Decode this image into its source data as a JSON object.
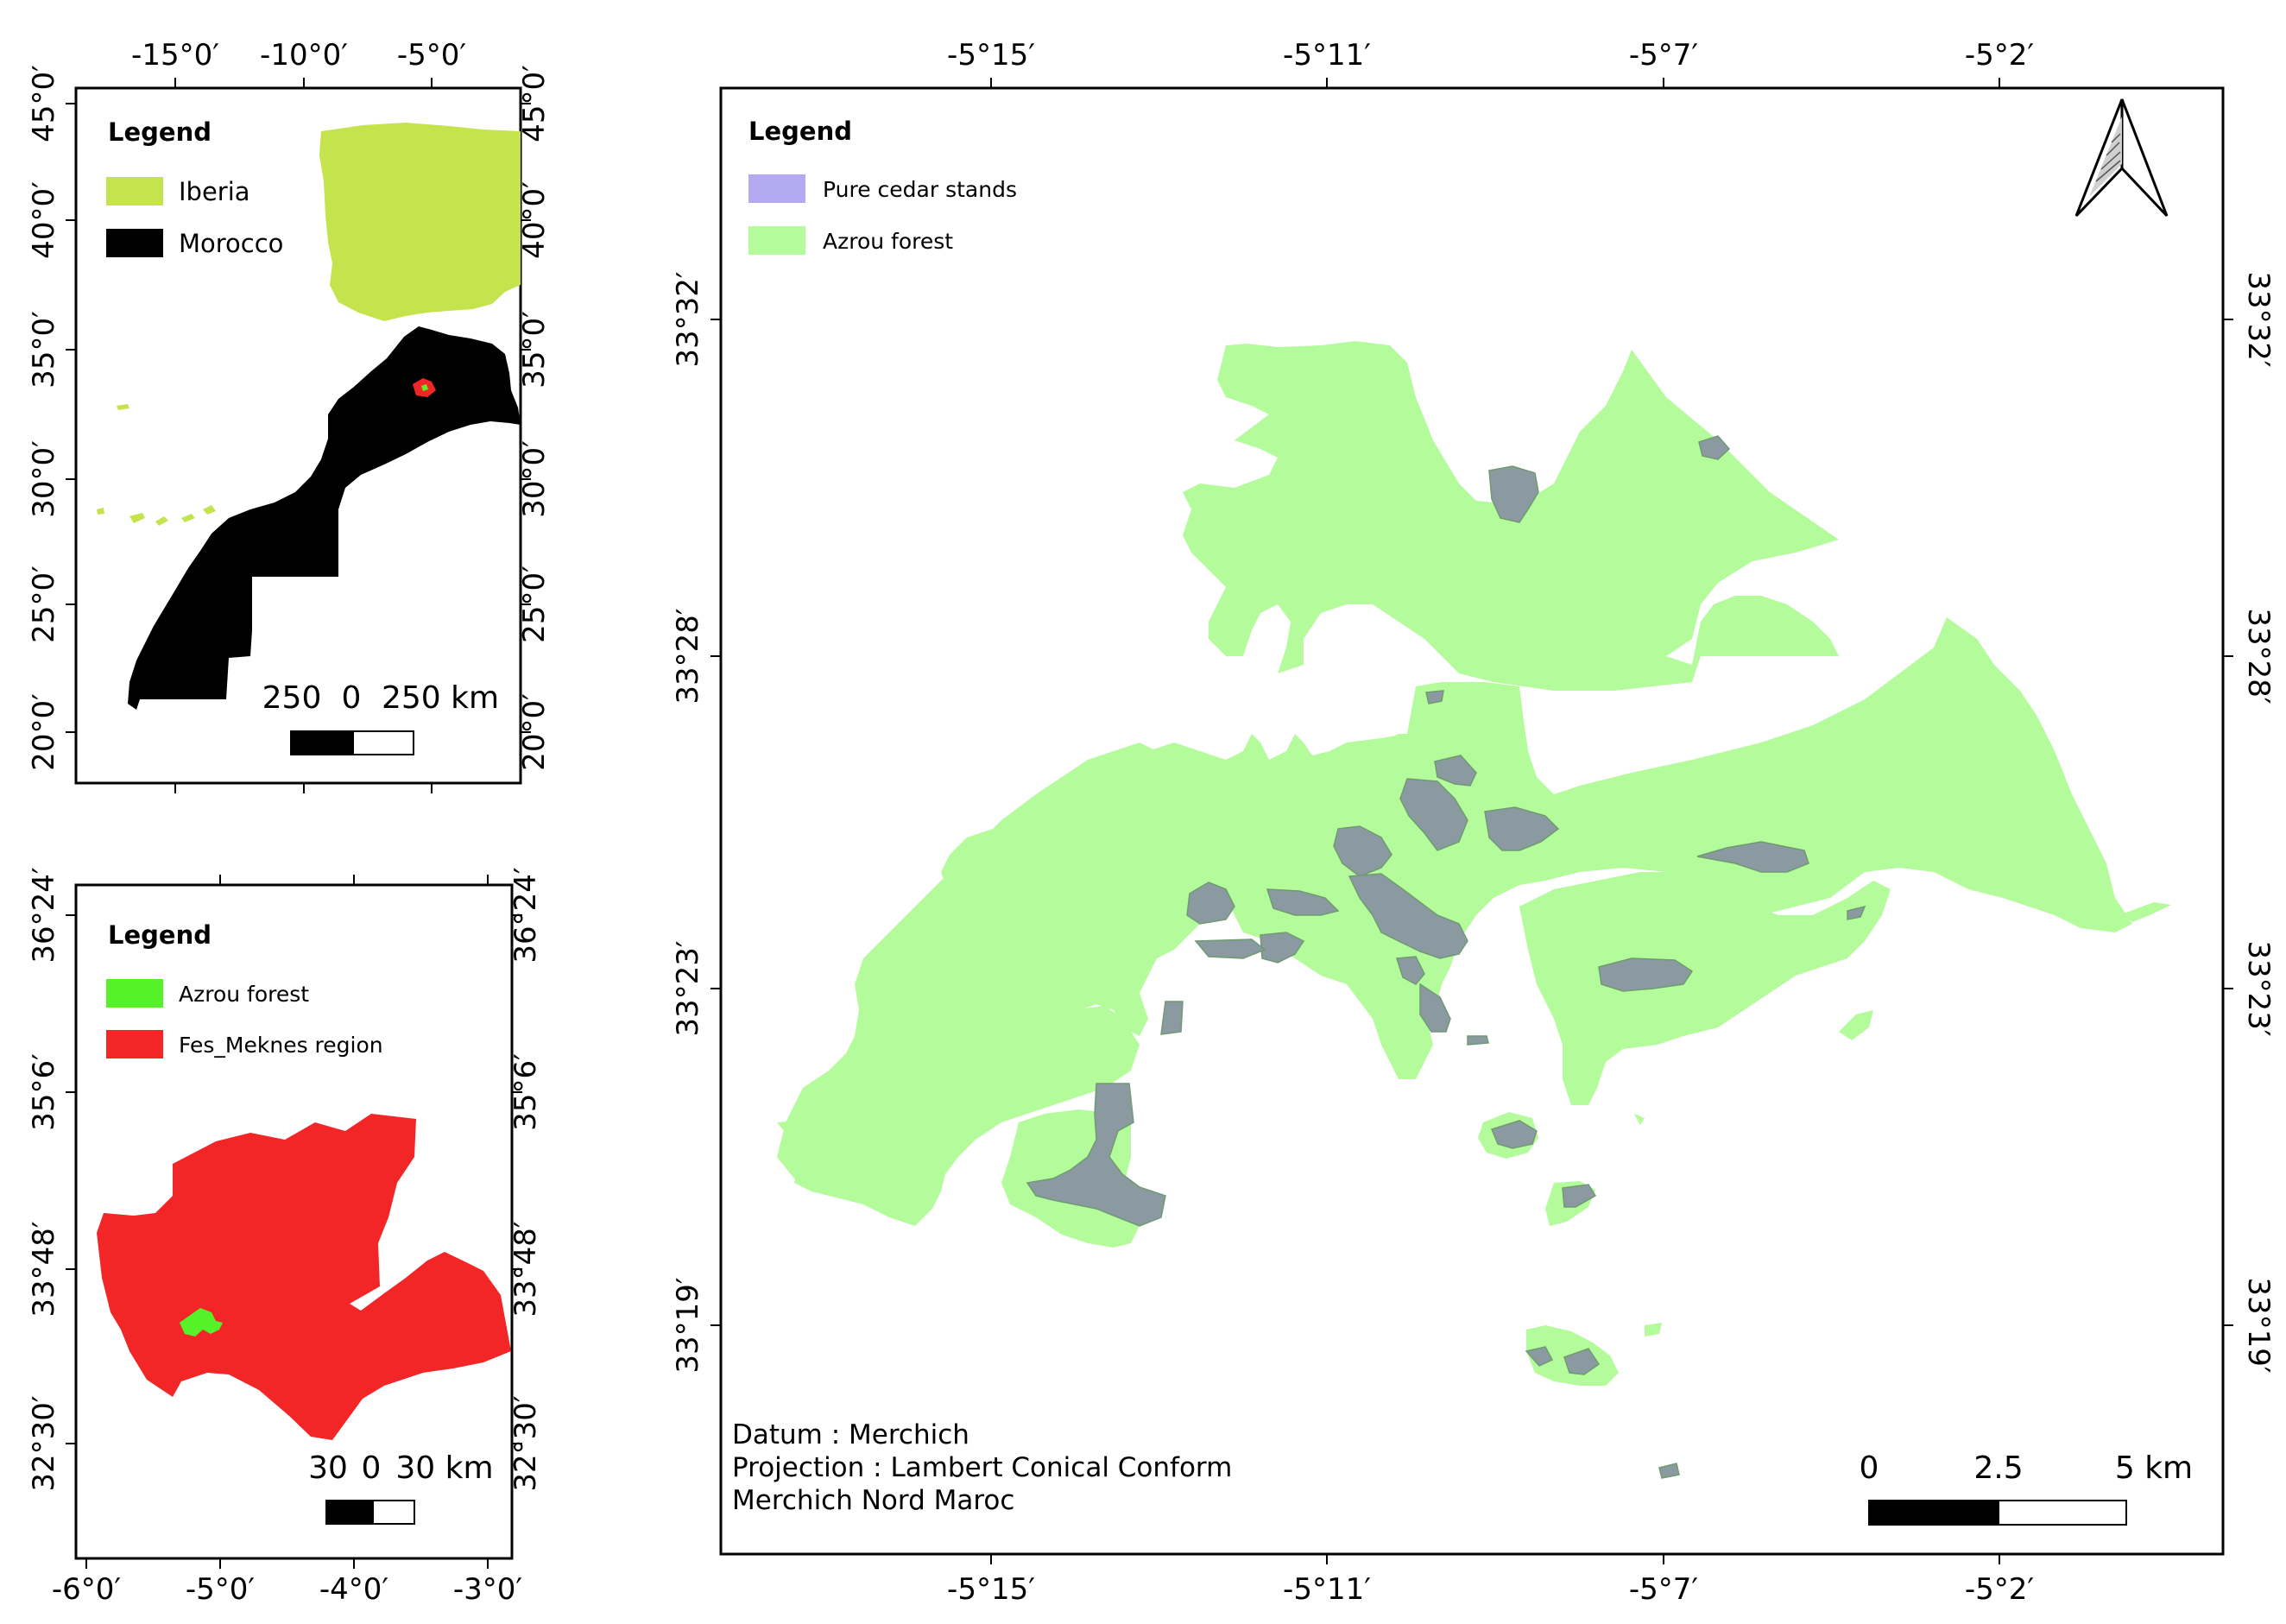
{
  "colors": {
    "iberia": "#c4e34c",
    "morocco": "#000000",
    "azrou_inset": "#55f22a",
    "fes_meknes": "#f22626",
    "azrou_forest": "#b3fb9b",
    "cedar_stands": "#b3aaf2",
    "cedar_on_forest": "#8b9aa0"
  },
  "inset1": {
    "legend_title": "Legend",
    "legend": [
      "Iberia",
      "Morocco"
    ],
    "top_ticks": [
      "-15°0′",
      "-10°0′",
      "-5°0′"
    ],
    "left_ticks": [
      "45°0′",
      "40°0′",
      "35°0′",
      "30°0′",
      "25°0′",
      "20°0′"
    ],
    "right_ticks": [
      "45°0′",
      "40°0′",
      "35°0′",
      "30°0′",
      "25°0′",
      "20°0′"
    ],
    "scale_labels": [
      "250",
      "0",
      "250 km"
    ]
  },
  "inset2": {
    "legend_title": "Legend",
    "legend": [
      "Azrou forest",
      "Fes_Meknes region"
    ],
    "bottom_ticks": [
      "-6°0′",
      "-5°0′",
      "-4°0′",
      "-3°0′"
    ],
    "left_ticks": [
      "36°24′",
      "35°6′",
      "33°48′",
      "32°30′"
    ],
    "right_ticks": [
      "36°24′",
      "35°6′",
      "33°48′",
      "32°30′"
    ],
    "scale_labels": [
      "30",
      "0",
      "30 km"
    ]
  },
  "main": {
    "legend_title": "Legend",
    "legend": [
      "Pure cedar stands",
      "Azrou forest"
    ],
    "top_ticks": [
      "-5°15′",
      "-5°11′",
      "-5°7′",
      "-5°2′"
    ],
    "bottom_ticks": [
      "-5°15′",
      "-5°11′",
      "-5°7′",
      "-5°2′"
    ],
    "left_ticks": [
      "33°32′",
      "33°28′",
      "33°23′",
      "33°19′"
    ],
    "right_ticks": [
      "33°32′",
      "33°28′",
      "33°23′",
      "33°19′"
    ],
    "notes": [
      "Datum : Merchich",
      "Projection : Lambert Conical Conform",
      "Merchich Nord Maroc"
    ],
    "scale_labels": [
      "0",
      "2.5",
      "5 km"
    ],
    "north_arrow": "north-arrow-icon"
  }
}
